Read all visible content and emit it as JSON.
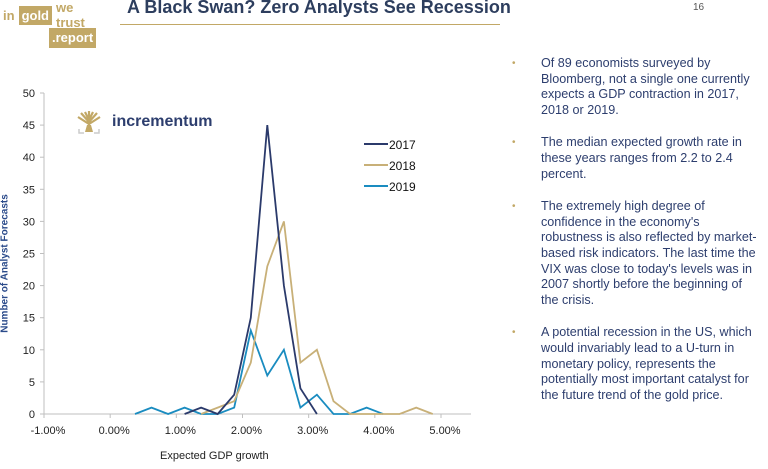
{
  "header": {
    "logo": {
      "in": "in",
      "gold": "gold",
      "we_trust": "we trust",
      "report": ".report"
    },
    "title": "A Black Swan? Zero Analysts See Recession",
    "page_number": "16"
  },
  "brand": {
    "name": "incrementum",
    "icon": "tree-icon"
  },
  "colors": {
    "gold": "#c2a866",
    "navy": "#2d3e6e",
    "series_2017": "#2b3a6b",
    "series_2018": "#c8b078",
    "series_2019": "#1a8cc0"
  },
  "bullets": [
    {
      "text": "Of 89 economists surveyed by Bloomberg, not a single one currently expects a GDP contraction in 2017, 2018 or 2019."
    },
    {
      "text": "The median expected growth rate in these years ranges from 2.2 to 2.4 percent."
    },
    {
      "text": "The extremely high degree of confidence in the economy's robustness is also reflected by market-based risk indicators. The last time the VIX was close to today's levels was in 2007 shortly before the beginning of the crisis."
    },
    {
      "text": "A potential recession in the US, which would invariably lead to a U-turn in monetary policy, represents the potentially most important catalyst for the future trend of the gold price."
    }
  ],
  "chart_data": {
    "type": "line",
    "title": "",
    "xlabel": "Expected GDP growth",
    "ylabel": "Number of Analyst Forecasts",
    "xlim": [
      -1.0,
      5.0
    ],
    "ylim": [
      0,
      50
    ],
    "x_ticks": [
      "-1.00%",
      "0.00%",
      "1.00%",
      "2.00%",
      "3.00%",
      "4.00%",
      "5.00%"
    ],
    "x_tick_values": [
      -1,
      0,
      1,
      2,
      3,
      4,
      5
    ],
    "y_ticks": [
      "0",
      "5",
      "10",
      "15",
      "20",
      "25",
      "30",
      "35",
      "40",
      "45",
      "50"
    ],
    "y_tick_values": [
      0,
      5,
      10,
      15,
      20,
      25,
      30,
      35,
      40,
      45,
      50
    ],
    "grid": false,
    "legend": "top-right",
    "series": [
      {
        "name": "2017",
        "x": [
          1.125,
          1.375,
          1.625,
          1.875,
          2.125,
          2.375,
          2.625,
          2.875,
          3.125
        ],
        "values": [
          0,
          1,
          0,
          3,
          15,
          45,
          20,
          4,
          0
        ]
      },
      {
        "name": "2018",
        "x": [
          1.375,
          1.625,
          1.875,
          2.125,
          2.375,
          2.625,
          2.875,
          3.125,
          3.375,
          3.625,
          3.875,
          4.125,
          4.375,
          4.625,
          4.875
        ],
        "values": [
          0,
          1,
          2,
          8,
          23,
          30,
          8,
          10,
          2,
          0,
          0,
          0,
          0,
          1,
          0
        ]
      },
      {
        "name": "2019",
        "x": [
          0.375,
          0.625,
          0.875,
          1.125,
          1.375,
          1.625,
          1.875,
          2.125,
          2.375,
          2.625,
          2.875,
          3.125,
          3.375,
          3.625,
          3.875,
          4.125
        ],
        "values": [
          0,
          1,
          0,
          1,
          0,
          0,
          1,
          13,
          6,
          10,
          1,
          3,
          0,
          0,
          1,
          0
        ]
      }
    ]
  }
}
